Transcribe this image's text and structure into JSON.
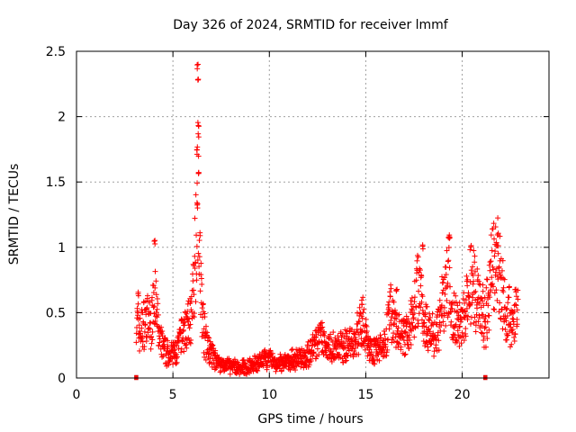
{
  "chart_data": {
    "type": "scatter",
    "title": "Day 326 of 2024, SRMTID for receiver lmmf",
    "xlabel": "GPS time / hours",
    "ylabel": "SRMTID / TECUs",
    "xlim": [
      0,
      24.5
    ],
    "ylim": [
      0,
      2.5
    ],
    "xticks": [
      0,
      5,
      10,
      15,
      20
    ],
    "yticks": [
      0,
      0.5,
      1,
      1.5,
      2,
      2.5
    ],
    "ytick_labels": [
      "0",
      "0.5",
      "1",
      "1.5",
      "2",
      "2.5"
    ],
    "grid": true,
    "marker": "+",
    "color": "#ff0000",
    "series": [
      {
        "name": "SRMTID",
        "profile_x": [
          3.1,
          3.3,
          3.6,
          3.9,
          4.0,
          4.1,
          4.3,
          4.6,
          4.9,
          5.2,
          5.5,
          5.8,
          6.0,
          6.2,
          6.3,
          6.4,
          6.6,
          6.9,
          7.3,
          7.7,
          8.0,
          8.5,
          9.0,
          9.5,
          10.0,
          10.4,
          10.8,
          11.5,
          12.0,
          12.6,
          13.0,
          13.5,
          14.0,
          14.5,
          14.8,
          15.2,
          15.6,
          16.0,
          16.3,
          16.6,
          17.0,
          17.4,
          17.8,
          18.0,
          18.3,
          18.7,
          19.0,
          19.3,
          19.5,
          19.8,
          20.2,
          20.5,
          20.9,
          21.2,
          21.6,
          21.8,
          22.0,
          22.3,
          22.7,
          22.9
        ],
        "profile_y": [
          0.45,
          0.35,
          0.45,
          0.4,
          0.75,
          0.55,
          0.3,
          0.2,
          0.18,
          0.2,
          0.35,
          0.4,
          0.5,
          1.1,
          1.7,
          0.8,
          0.35,
          0.2,
          0.12,
          0.1,
          0.09,
          0.08,
          0.09,
          0.12,
          0.15,
          0.1,
          0.12,
          0.15,
          0.18,
          0.3,
          0.25,
          0.22,
          0.25,
          0.3,
          0.45,
          0.22,
          0.22,
          0.28,
          0.5,
          0.35,
          0.3,
          0.45,
          0.75,
          0.45,
          0.35,
          0.35,
          0.55,
          0.8,
          0.5,
          0.4,
          0.5,
          0.75,
          0.5,
          0.45,
          0.85,
          0.95,
          0.7,
          0.5,
          0.45,
          0.5
        ],
        "peaks": [
          {
            "x": 6.28,
            "y": 2.4
          },
          {
            "x": 6.3,
            "y": 2.3
          },
          {
            "x": 6.32,
            "y": 1.96
          },
          {
            "x": 6.25,
            "y": 1.75
          },
          {
            "x": 6.35,
            "y": 1.58
          },
          {
            "x": 6.27,
            "y": 1.35
          },
          {
            "x": 4.05,
            "y": 1.06
          },
          {
            "x": 17.95,
            "y": 1.02
          },
          {
            "x": 19.35,
            "y": 1.1
          },
          {
            "x": 21.85,
            "y": 1.12
          },
          {
            "x": 16.6,
            "y": 0.7
          },
          {
            "x": 14.8,
            "y": 0.6
          },
          {
            "x": 3.2,
            "y": 0.66
          }
        ],
        "zero_marks_x": [
          3.1,
          21.2
        ]
      }
    ]
  }
}
